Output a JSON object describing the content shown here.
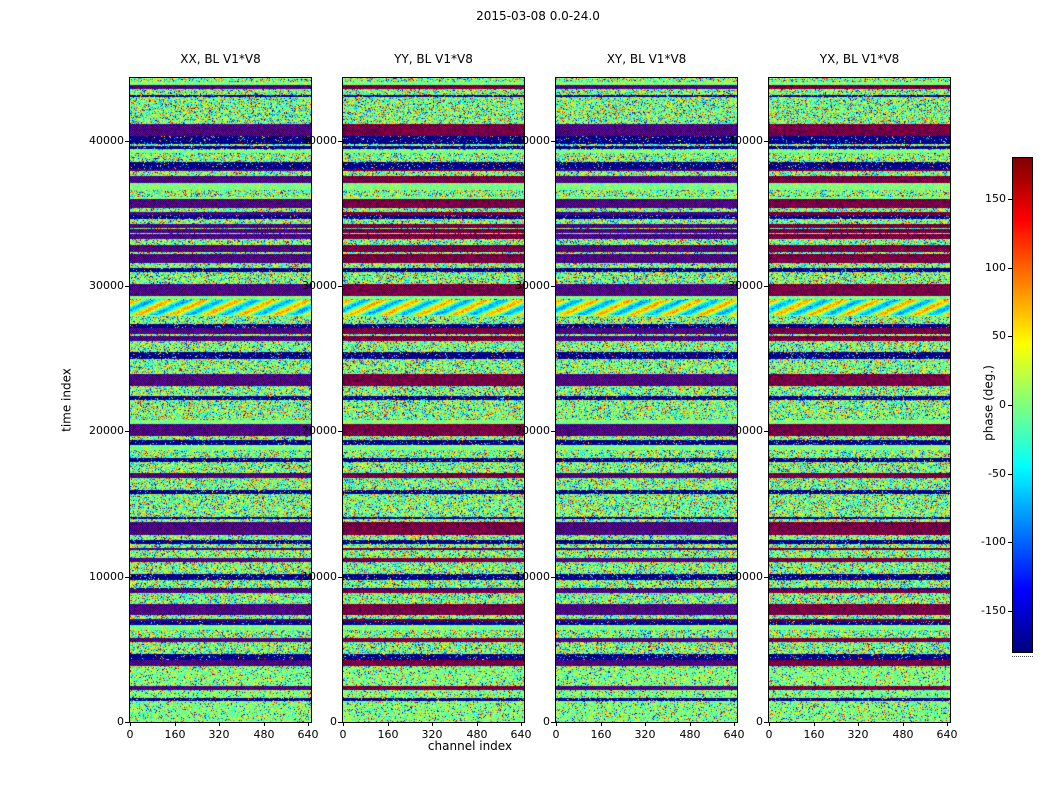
{
  "figure": {
    "title": "2015-03-08 0.0-24.0",
    "xlabel": "channel index",
    "ylabel": "time index"
  },
  "chart_data": {
    "type": "heatmap",
    "title": "2015-03-08 0.0-24.0",
    "xlabel": "channel index",
    "ylabel": "time index",
    "panels": [
      {
        "title": "XX, BL V1*V8"
      },
      {
        "title": "YY, BL V1*V8"
      },
      {
        "title": "XY, BL V1*V8"
      },
      {
        "title": "YX, BL V1*V8"
      }
    ],
    "x_ticks": [
      0,
      160,
      320,
      480,
      640
    ],
    "y_ticks": [
      0,
      10000,
      20000,
      30000,
      40000
    ],
    "x_range": [
      0,
      650
    ],
    "y_range": [
      0,
      44300
    ],
    "colormap": "jet",
    "value_range": [
      -180,
      180
    ],
    "colorbar": {
      "label": "phase (deg.)",
      "ticks": [
        150,
        100,
        50,
        0,
        -50,
        -100,
        -150
      ],
      "range": [
        -180,
        180
      ]
    },
    "data_description": "Interferometric visibility phase (deg.) per channel vs time index for baseline V1*V8, four polarisation products (XX, YY, XY, YX). Speckled jet-colormap noise centred on 0 deg (green) with horizontal RFI/calibration bands (striped +/-150 deg checker rows and dark ~-180 deg rows) aligned in time across all four panels; calmer greener region near time 0.",
    "render": {
      "row_seed": 20150308,
      "panel_seeds": [
        101,
        202,
        303,
        404
      ],
      "band_types": {
        "x": "stripe",
        "d": "dark",
        "c": "calm",
        "m": "mild",
        "w": "wavy",
        "s": "speckle"
      },
      "forced_bands": [
        [
          46,
          57,
          "x"
        ],
        [
          58,
          64,
          "d"
        ],
        [
          84,
          90,
          "d"
        ],
        [
          100,
          104,
          "x"
        ],
        [
          121,
          129,
          "x"
        ],
        [
          137,
          140,
          "d"
        ],
        [
          151,
          154,
          "x"
        ],
        [
          176,
          184,
          "x"
        ],
        [
          190,
          193,
          "d"
        ],
        [
          206,
          217,
          "x"
        ],
        [
          222,
          236,
          "w"
        ],
        [
          246,
          249,
          "d"
        ],
        [
          258,
          262,
          "x"
        ],
        [
          274,
          277,
          "d"
        ],
        [
          296,
          307,
          "x"
        ],
        [
          318,
          321,
          "d"
        ],
        [
          346,
          357,
          "x"
        ],
        [
          362,
          366,
          "d"
        ],
        [
          380,
          383,
          "d"
        ],
        [
          395,
          399,
          "x"
        ],
        [
          412,
          415,
          "d"
        ],
        [
          446,
          456,
          "x"
        ],
        [
          462,
          465,
          "d"
        ],
        [
          480,
          483,
          "x"
        ],
        [
          496,
          501,
          "d"
        ],
        [
          511,
          514,
          "x"
        ],
        [
          526,
          536,
          "x"
        ],
        [
          543,
          546,
          "d"
        ],
        [
          560,
          563,
          "x"
        ],
        [
          576,
          581,
          "d"
        ],
        [
          590,
          643,
          "m"
        ],
        [
          608,
          611,
          "x"
        ],
        [
          620,
          622,
          "d"
        ]
      ]
    }
  }
}
